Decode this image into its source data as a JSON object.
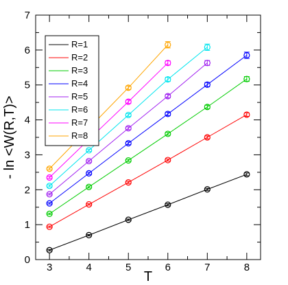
{
  "chart_data": {
    "type": "line",
    "xlabel": "T",
    "ylabel": "- ln <W(R,T)>",
    "xlim": [
      2.65,
      8.35
    ],
    "ylim": [
      0,
      7
    ],
    "xticks": [
      3,
      4,
      5,
      6,
      7,
      8
    ],
    "yticks": [
      0,
      1,
      2,
      3,
      4,
      5,
      6,
      7
    ],
    "grid": false,
    "legend": "top-left",
    "markers": "open-circle-with-error-bars",
    "series": [
      {
        "name": "R=1",
        "color": "#000000",
        "x": [
          3,
          4,
          5,
          6,
          7,
          8
        ],
        "y": [
          0.27,
          0.7,
          1.14,
          1.57,
          2.01,
          2.44
        ],
        "err": [
          0.02,
          0.02,
          0.02,
          0.03,
          0.03,
          0.04
        ]
      },
      {
        "name": "R=2",
        "color": "#ff0000",
        "x": [
          3,
          4,
          5,
          6,
          7,
          8
        ],
        "y": [
          0.94,
          1.58,
          2.21,
          2.85,
          3.5,
          4.15
        ],
        "err": [
          0.02,
          0.02,
          0.03,
          0.03,
          0.04,
          0.05
        ]
      },
      {
        "name": "R=3",
        "color": "#00cc00",
        "x": [
          3,
          4,
          5,
          6,
          7,
          8
        ],
        "y": [
          1.31,
          2.08,
          2.84,
          3.6,
          4.37,
          5.17
        ],
        "err": [
          0.02,
          0.03,
          0.03,
          0.04,
          0.05,
          0.07
        ]
      },
      {
        "name": "R=4",
        "color": "#0000ff",
        "x": [
          3,
          4,
          5,
          6,
          7,
          8
        ],
        "y": [
          1.61,
          2.47,
          3.33,
          4.17,
          5.01,
          5.85
        ],
        "err": [
          0.02,
          0.03,
          0.04,
          0.05,
          0.06,
          0.09
        ]
      },
      {
        "name": "R=5",
        "color": "#a020f0",
        "x": [
          3,
          4,
          5,
          6,
          7
        ],
        "y": [
          1.87,
          2.82,
          3.76,
          4.68,
          5.63
        ],
        "err": [
          0.02,
          0.03,
          0.04,
          0.05,
          0.07
        ]
      },
      {
        "name": "R=6",
        "color": "#00e5ee",
        "x": [
          3,
          4,
          5,
          6,
          7
        ],
        "y": [
          2.11,
          3.13,
          4.14,
          5.16,
          6.08
        ],
        "err": [
          0.03,
          0.03,
          0.04,
          0.06,
          0.09
        ]
      },
      {
        "name": "R=7",
        "color": "#ff00ff",
        "x": [
          3,
          4,
          5,
          6
        ],
        "y": [
          2.35,
          3.44,
          4.52,
          5.63
        ],
        "err": [
          0.03,
          0.03,
          0.05,
          0.06
        ]
      },
      {
        "name": "R=8",
        "color": "#ffa500",
        "x": [
          3,
          4,
          5,
          6
        ],
        "y": [
          2.6,
          3.76,
          4.92,
          6.15
        ],
        "err": [
          0.03,
          0.04,
          0.05,
          0.09
        ]
      }
    ]
  }
}
